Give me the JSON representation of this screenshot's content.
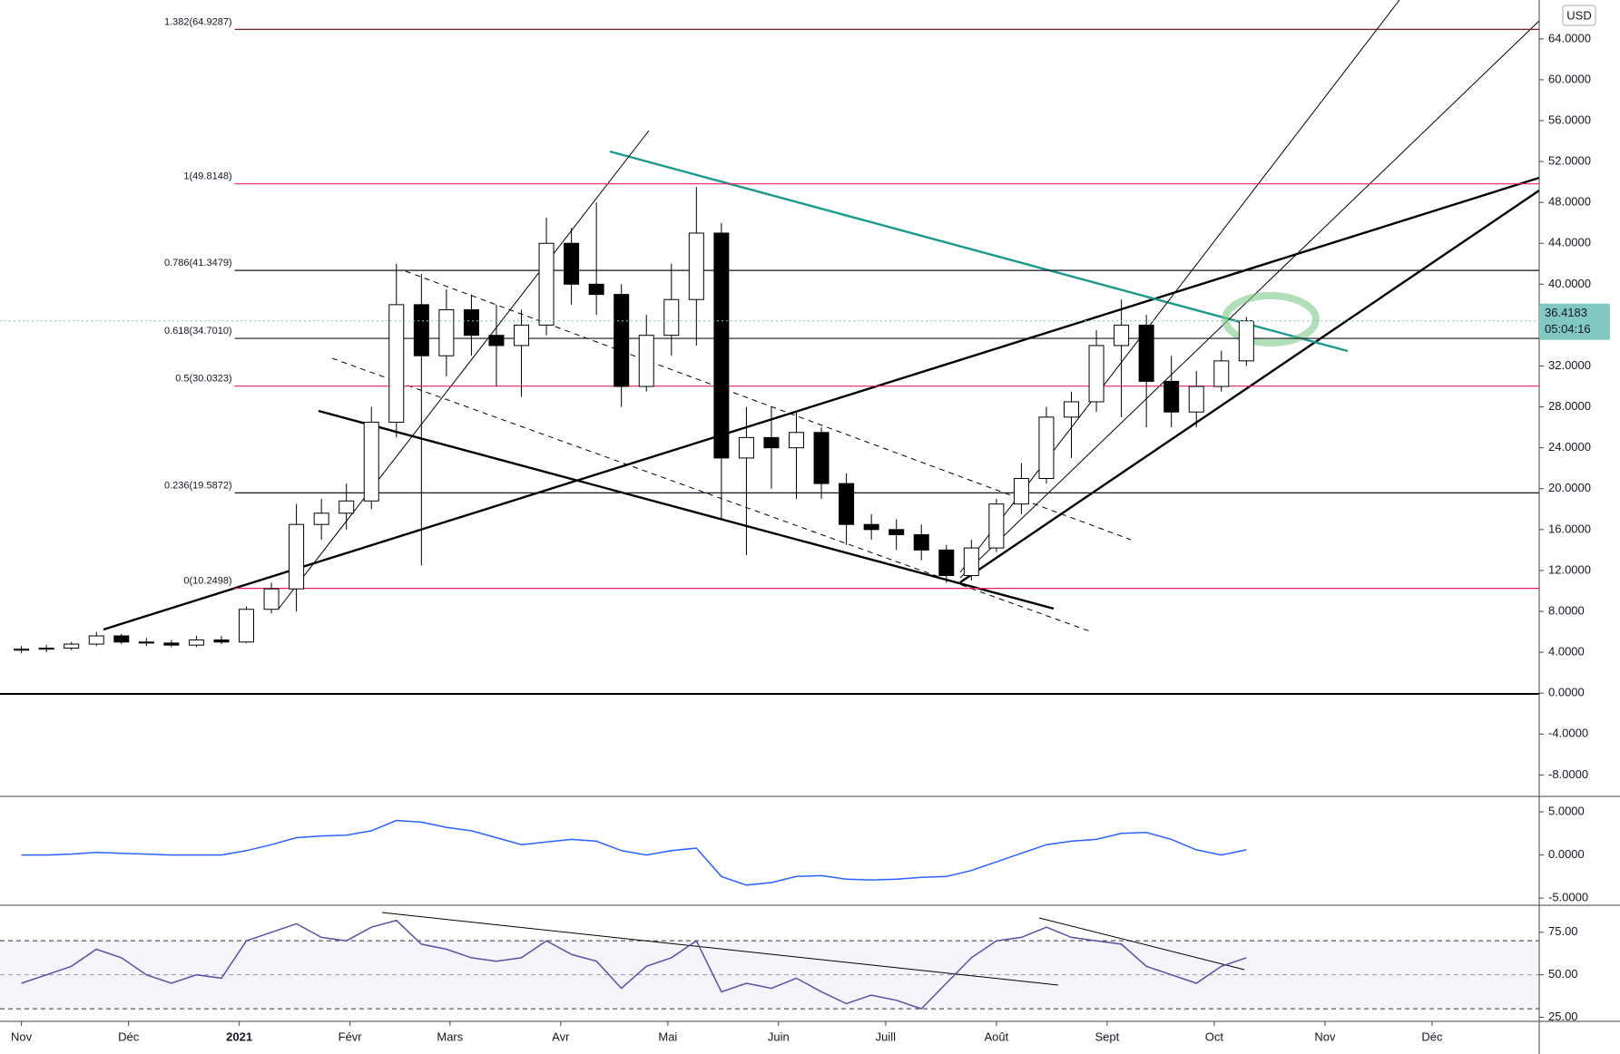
{
  "chart_data": [
    {
      "type": "candlestick",
      "currency": "USD",
      "countdown": "05:04:16",
      "x": [
        0,
        7,
        14,
        21,
        28,
        35,
        42,
        49,
        56,
        63,
        70,
        77,
        84,
        91,
        98,
        105,
        112,
        119,
        126,
        133,
        140,
        147,
        154,
        161,
        168,
        175,
        182,
        189,
        196,
        203,
        210,
        217,
        224,
        231,
        238,
        245,
        252,
        259,
        266,
        273,
        280,
        287,
        294,
        301,
        308,
        315,
        322,
        329,
        336,
        343
      ],
      "open": [
        4.2,
        4.3,
        4.4,
        4.8,
        5.6,
        5.0,
        4.9,
        4.7,
        5.2,
        5.0,
        8.2,
        10.2,
        16.5,
        17.6,
        18.8,
        26.5,
        38.0,
        33.0,
        37.5,
        35.0,
        34.0,
        36.0,
        44.0,
        40.0,
        39.0,
        30.0,
        35.0,
        38.5,
        45.0,
        23.0,
        25.0,
        24.0,
        25.5,
        20.5,
        16.5,
        16.0,
        15.5,
        14.0,
        11.5,
        14.2,
        18.5,
        21.0,
        27.0,
        28.5,
        34.0,
        36.0,
        30.5,
        27.5,
        30.0,
        32.5
      ],
      "high": [
        4.6,
        4.7,
        5.0,
        6.0,
        5.8,
        5.4,
        5.2,
        5.6,
        5.6,
        8.5,
        10.8,
        18.5,
        19.0,
        20.5,
        28.0,
        42.0,
        41.0,
        39.5,
        39.0,
        38.0,
        37.5,
        46.5,
        45.5,
        48.0,
        40.0,
        37.0,
        42.0,
        49.5,
        46.0,
        28.0,
        28.0,
        27.5,
        26.0,
        21.5,
        17.5,
        17.0,
        16.5,
        14.5,
        15.0,
        19.0,
        22.5,
        28.0,
        29.5,
        35.5,
        38.5,
        37.0,
        33.0,
        31.5,
        33.5,
        36.8
      ],
      "low": [
        3.9,
        4.0,
        4.2,
        4.6,
        4.8,
        4.6,
        4.5,
        4.5,
        4.8,
        4.9,
        7.8,
        8.0,
        15.0,
        16.0,
        18.0,
        25.0,
        12.5,
        31.0,
        33.0,
        30.0,
        29.0,
        35.0,
        38.0,
        37.0,
        28.0,
        29.5,
        33.0,
        34.0,
        17.0,
        13.5,
        20.0,
        19.0,
        19.0,
        14.5,
        15.0,
        14.0,
        13.0,
        10.8,
        11.0,
        13.8,
        17.5,
        20.5,
        23.0,
        27.5,
        27.0,
        26.0,
        26.0,
        26.0,
        29.5,
        32.0
      ],
      "close": [
        4.3,
        4.4,
        4.8,
        5.6,
        5.0,
        4.9,
        4.7,
        5.2,
        5.0,
        8.2,
        10.2,
        16.5,
        17.6,
        18.8,
        26.5,
        38.0,
        33.0,
        37.5,
        35.0,
        34.0,
        36.0,
        44.0,
        40.0,
        39.0,
        30.0,
        35.0,
        38.5,
        45.0,
        23.0,
        25.0,
        24.0,
        25.5,
        20.5,
        16.5,
        16.0,
        15.5,
        14.0,
        11.5,
        14.2,
        18.5,
        21.0,
        27.0,
        28.5,
        34.0,
        36.0,
        30.5,
        27.5,
        30.0,
        32.5,
        36.4183
      ],
      "up_color": "#ffffff",
      "down_color": "#000000",
      "last_color": "#81c9c0",
      "fib_levels": [
        {
          "label": "1.382(64.9287)",
          "value": 64.9287,
          "color": "#7b1f1f"
        },
        {
          "label": "1(49.8148)",
          "value": 49.8148,
          "color": "#e91e63"
        },
        {
          "label": "0.786(41.3479)",
          "value": 41.3479,
          "color": "#131722"
        },
        {
          "label": "0.618(34.7010)",
          "value": 34.701,
          "color": "#131722"
        },
        {
          "label": "0.5(30.0323)",
          "value": 30.0323,
          "color": "#e91e63"
        },
        {
          "label": "0.236(19.5872)",
          "value": 19.5872,
          "color": "#131722"
        },
        {
          "label": "0(10.2498)",
          "value": 10.2498,
          "color": "#e91e63"
        }
      ],
      "xlim": [
        -6,
        425
      ],
      "ylim": [
        -10.1,
        67.8
      ],
      "yticks": [
        {
          "value": -8,
          "label": "-8.0000"
        },
        {
          "value": -4,
          "label": "-4.0000"
        },
        {
          "value": 0,
          "label": "0.0000"
        },
        {
          "value": 4,
          "label": "4.0000"
        },
        {
          "value": 8,
          "label": "8.0000"
        },
        {
          "value": 12,
          "label": "12.0000"
        },
        {
          "value": 16,
          "label": "16.0000"
        },
        {
          "value": 20,
          "label": "20.0000"
        },
        {
          "value": 24,
          "label": "24.0000"
        },
        {
          "value": 28,
          "label": "28.0000"
        },
        {
          "value": 32,
          "label": "32.0000"
        },
        {
          "value": 36,
          "label": "36.0000"
        },
        {
          "value": 40,
          "label": "40.0000"
        },
        {
          "value": 44,
          "label": "44.0000"
        },
        {
          "value": 48,
          "label": "48.0000"
        },
        {
          "value": 52,
          "label": "52.0000"
        },
        {
          "value": 56,
          "label": "56.0000"
        },
        {
          "value": 60,
          "label": "60.0000"
        },
        {
          "value": 64,
          "label": "64.0000"
        }
      ]
    },
    {
      "type": "line",
      "color": "#2962ff",
      "x": [
        0,
        7,
        14,
        21,
        28,
        35,
        42,
        49,
        56,
        63,
        70,
        77,
        84,
        91,
        98,
        105,
        112,
        119,
        126,
        133,
        140,
        147,
        154,
        161,
        168,
        175,
        182,
        189,
        196,
        203,
        210,
        217,
        224,
        231,
        238,
        245,
        252,
        259,
        266,
        273,
        280,
        287,
        294,
        301,
        308,
        315,
        322,
        329,
        336,
        343
      ],
      "values": [
        0,
        0,
        0.1,
        0.3,
        0.2,
        0.1,
        0,
        0,
        0,
        0.5,
        1.2,
        2.0,
        2.2,
        2.3,
        2.8,
        4.0,
        3.8,
        3.2,
        2.8,
        2.0,
        1.2,
        1.5,
        1.8,
        1.6,
        0.5,
        0,
        0.5,
        0.8,
        -2.5,
        -3.5,
        -3.2,
        -2.5,
        -2.4,
        -2.8,
        -2.9,
        -2.8,
        -2.6,
        -2.5,
        -1.8,
        -0.8,
        0.2,
        1.2,
        1.6,
        1.8,
        2.5,
        2.6,
        1.8,
        0.6,
        0,
        0.6
      ],
      "xlim": [
        -6,
        425
      ],
      "ylim": [
        -5.83,
        6.79
      ],
      "yticks": [
        {
          "value": 5,
          "label": "5.0000"
        },
        {
          "value": 0,
          "label": "0.0000"
        },
        {
          "value": -5,
          "label": "-5.0000"
        }
      ]
    },
    {
      "type": "line",
      "color": "#5b4fa6",
      "bands": [
        70,
        50,
        30
      ],
      "band_color": "#7e57c2",
      "x": [
        0,
        7,
        14,
        21,
        28,
        35,
        42,
        49,
        56,
        63,
        70,
        77,
        84,
        91,
        98,
        105,
        112,
        119,
        126,
        133,
        140,
        147,
        154,
        161,
        168,
        175,
        182,
        189,
        196,
        203,
        210,
        217,
        224,
        231,
        238,
        245,
        252,
        259,
        266,
        273,
        280,
        287,
        294,
        301,
        308,
        315,
        322,
        329,
        336,
        343
      ],
      "values": [
        45,
        50,
        55,
        65,
        60,
        50,
        45,
        50,
        48,
        70,
        75,
        80,
        72,
        70,
        78,
        82,
        68,
        65,
        60,
        58,
        60,
        70,
        62,
        58,
        42,
        55,
        60,
        70,
        40,
        45,
        42,
        48,
        40,
        33,
        38,
        35,
        30,
        45,
        60,
        70,
        72,
        78,
        72,
        70,
        68,
        55,
        50,
        45,
        55,
        60
      ],
      "xlim": [
        -6,
        425
      ],
      "ylim": [
        22.6,
        90.9
      ],
      "yticks": [
        {
          "value": 75,
          "label": "75.00"
        },
        {
          "value": 50,
          "label": "50.00"
        },
        {
          "value": 25,
          "label": "25.00"
        }
      ],
      "xticks": [
        {
          "value": 0,
          "label": "Nov"
        },
        {
          "value": 30,
          "label": "Déc"
        },
        {
          "value": 61,
          "label": "2021"
        },
        {
          "value": 92,
          "label": "Févr"
        },
        {
          "value": 120,
          "label": "Mars"
        },
        {
          "value": 151,
          "label": "Avr"
        },
        {
          "value": 181,
          "label": "Mai"
        },
        {
          "value": 212,
          "label": "Juin"
        },
        {
          "value": 242,
          "label": "Juill"
        },
        {
          "value": 273,
          "label": "Août"
        },
        {
          "value": 304,
          "label": "Sept"
        },
        {
          "value": 334,
          "label": "Oct"
        },
        {
          "value": 365,
          "label": "Nov"
        },
        {
          "value": 395,
          "label": "Déc"
        }
      ]
    }
  ]
}
